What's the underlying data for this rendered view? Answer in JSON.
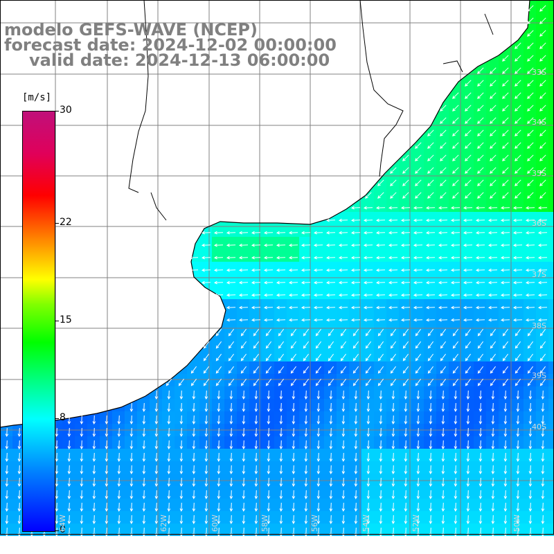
{
  "titles": {
    "line1": "modelo GEFS-WAVE (NCEP)",
    "line2": "forecast date: 2024-12-02 00:00:00",
    "line3": "valid date: 2024-12-13 06:00:00"
  },
  "colorbar": {
    "units": "[m/s]",
    "range": [
      0,
      30
    ],
    "ticks": [
      {
        "value": 30,
        "label": "30"
      },
      {
        "value": 22,
        "label": "22"
      },
      {
        "value": 15,
        "label": "15"
      },
      {
        "value": 8,
        "label": "8"
      },
      {
        "value": 0,
        "label": "0"
      }
    ],
    "colors": [
      "#0000ff",
      "#0080ff",
      "#00ffff",
      "#00ff80",
      "#00ff00",
      "#80ff00",
      "#ffff00",
      "#ff8000",
      "#ff0000",
      "#c0107a"
    ]
  },
  "map": {
    "variable": "wind speed and direction",
    "land_color": "#ffffff",
    "coastline_color": "#000000",
    "grid_color": "#808080",
    "lat_labels": [
      "33S",
      "34S",
      "35S",
      "36S",
      "37S",
      "38S",
      "39S",
      "40S"
    ],
    "lon_labels": [
      "64W",
      "62W",
      "60W",
      "58W",
      "56W",
      "54W",
      "52W",
      "50W"
    ]
  }
}
